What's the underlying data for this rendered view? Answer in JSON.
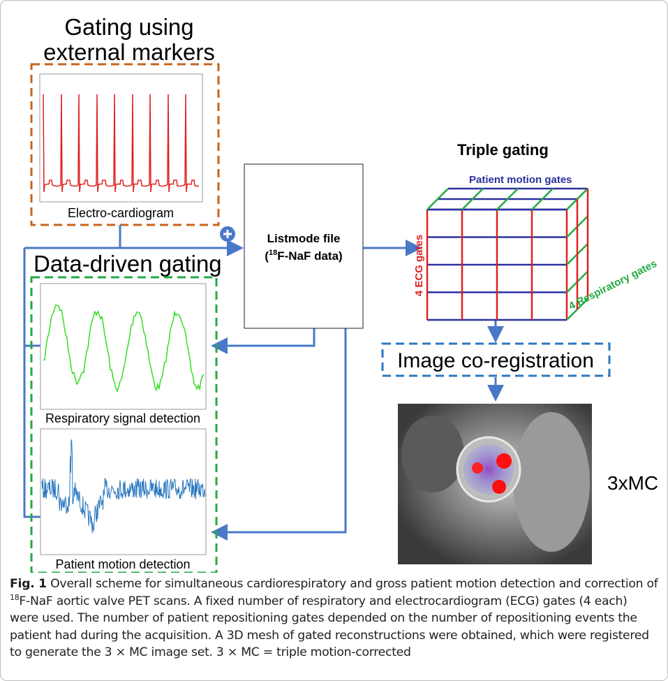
{
  "external": {
    "title_lines": [
      "Gating using",
      "external markers"
    ],
    "ecg_label": "Electro-cardiogram"
  },
  "data_driven": {
    "title": "Data-driven gating",
    "resp_label": "Respiratory signal detection",
    "motion_label": "Patient motion detection"
  },
  "listmode": {
    "line1": "Listmode file",
    "line2_pre": "(",
    "line2_sup": "18",
    "line2_post": "F-NaF data)"
  },
  "triple": {
    "title": "Triple gating",
    "top": "Patient motion gates",
    "left": "4 ECG gates",
    "right": "4 Respiratory gates"
  },
  "coreg": "Image co-registration",
  "result": "3xMC",
  "caption": {
    "label": "Fig. 1",
    "pre": " Overall scheme for simultaneous cardiorespiratory and gross patient motion detection and correction of ",
    "sup": "18",
    "post": "F-NaF aortic valve PET scans. A fixed number of respiratory and electrocardiogram (ECG) gates (4 each) were used. The number of patient repositioning gates depended on the number of repositioning events the patient had during the acquisition. A 3D mesh of gated reconstructions were obtained, which were registered to generate the 3 × MC image set. 3 × MC = triple motion-corrected"
  }
}
